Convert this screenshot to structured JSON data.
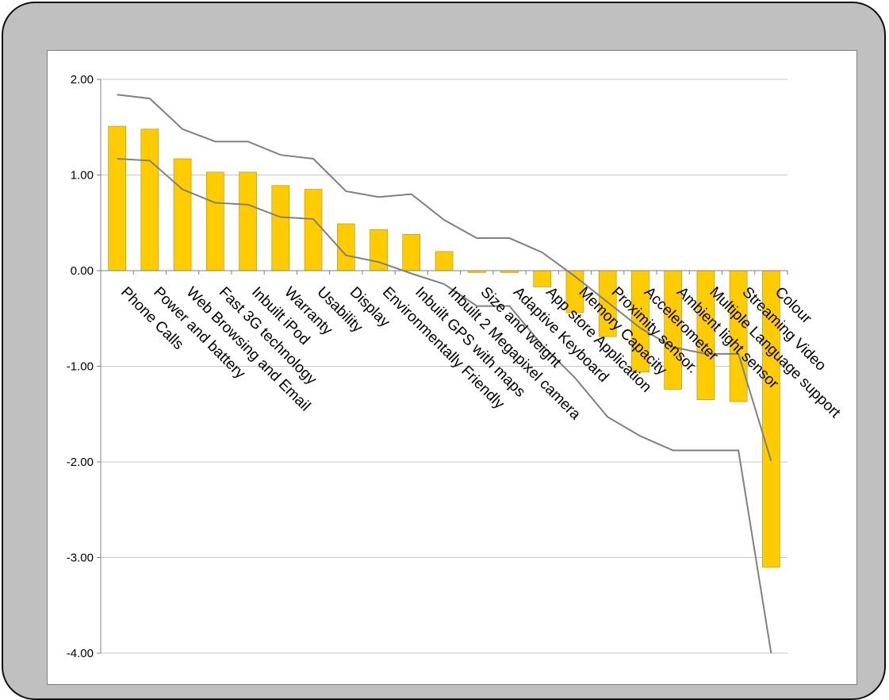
{
  "chart_data": {
    "type": "bar",
    "title": "",
    "xlabel": "",
    "ylabel": "",
    "ylim": [
      -4,
      2
    ],
    "yticks": [
      2,
      1,
      0,
      -1,
      -2,
      -3,
      -4
    ],
    "ytick_labels": [
      "2.00",
      "1.00",
      "0.00",
      "-1.00",
      "-2.00",
      "-3.00",
      "-4.00"
    ],
    "grid": true,
    "legend": "none",
    "categories": [
      "Phone Calls",
      "Power and battery",
      "Web Browsing and Email",
      "Fast 3G technology",
      "Inbuilt iPod",
      "Warranty",
      "Usability",
      "Display",
      "Environmentally Friendly",
      "Inbuilt GPS with maps",
      "Inbuilt 2 Megapixel camera",
      "Size and weight",
      "Adaptive Keyboard",
      "App store Application",
      "Memory Capacity",
      "Proximity sensor.",
      "Accelerometer",
      "Ambient light sensor",
      "Multiple Language support",
      "Streaming Video",
      "Colour"
    ],
    "series": [
      {
        "kind": "bar",
        "color": "#ffcc00",
        "values": [
          1.51,
          1.48,
          1.17,
          1.03,
          1.03,
          0.89,
          0.85,
          0.49,
          0.43,
          0.38,
          0.2,
          -0.02,
          -0.02,
          -0.17,
          -0.44,
          -0.69,
          -1.06,
          -1.24,
          -1.35,
          -1.37,
          -3.1
        ]
      },
      {
        "kind": "line",
        "color": "#808080",
        "values": [
          1.84,
          1.8,
          1.48,
          1.35,
          1.35,
          1.21,
          1.17,
          0.83,
          0.77,
          0.8,
          0.53,
          0.34,
          0.34,
          0.19,
          -0.06,
          -0.33,
          -0.6,
          -0.8,
          -0.87,
          -0.87,
          -1.99
        ]
      },
      {
        "kind": "line",
        "color": "#808080",
        "values": [
          1.17,
          1.15,
          0.85,
          0.71,
          0.69,
          0.56,
          0.54,
          0.16,
          0.09,
          -0.03,
          -0.14,
          -0.37,
          -0.37,
          -0.78,
          -1.12,
          -1.53,
          -1.73,
          -1.88,
          -1.88,
          -1.88,
          -4.0
        ]
      }
    ]
  }
}
